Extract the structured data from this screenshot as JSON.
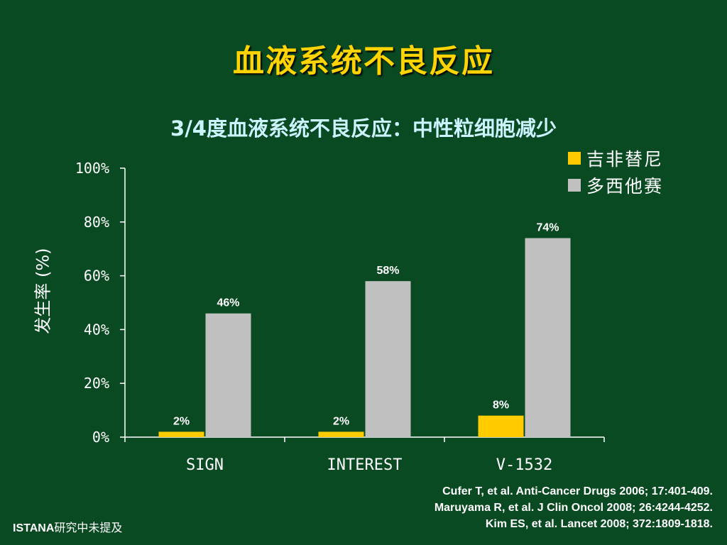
{
  "title": "血液系统不良反应",
  "footnote": {
    "brand": "ISTANA",
    "text": "研究中未提及"
  },
  "references": [
    "Cufer T, et al. Anti-Cancer Drugs 2006; 17:401-409.",
    "Maruyama R, et al. J Clin Oncol 2008; 26:4244-4252.",
    "Kim ES, et al. Lancet 2008; 372:1809-1818."
  ],
  "colors": {
    "background": "#0a4a22",
    "title": "#ffd400",
    "subtitle": "#ccf4ff"
  },
  "chart_data": {
    "type": "bar",
    "title": "3/4度血液系统不良反应：中性粒细胞减少",
    "ylabel": "发生率 (%)",
    "xlabel": "",
    "categories": [
      "SIGN",
      "INTEREST",
      "V-1532"
    ],
    "series": [
      {
        "name": "吉非替尼",
        "color": "#ffcc00",
        "values": [
          2,
          2,
          8
        ],
        "labels": [
          "2%",
          "2%",
          "8%"
        ]
      },
      {
        "name": "多西他赛",
        "color": "#c0c0c0",
        "values": [
          46,
          58,
          74
        ],
        "labels": [
          "46%",
          "58%",
          "74%"
        ]
      }
    ],
    "ylim": [
      0,
      100
    ],
    "yticks": [
      0,
      20,
      40,
      60,
      80,
      100
    ],
    "ytick_labels": [
      "0%",
      "20%",
      "40%",
      "60%",
      "80%",
      "100%"
    ],
    "grid": false,
    "legend_position": "top-right"
  }
}
